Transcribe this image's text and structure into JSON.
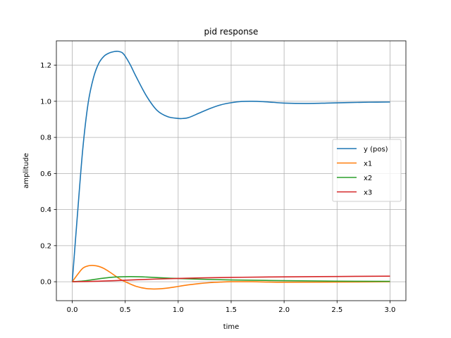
{
  "chart_data": {
    "type": "line",
    "title": "pid response",
    "xlabel": "time",
    "ylabel": "amplitude",
    "xlim": [
      -0.15,
      3.15
    ],
    "ylim": [
      -0.105,
      1.335
    ],
    "xticks": [
      0.0,
      0.5,
      1.0,
      1.5,
      2.0,
      2.5,
      3.0
    ],
    "xtick_labels": [
      "0.0",
      "0.5",
      "1.0",
      "1.5",
      "2.0",
      "2.5",
      "3.0"
    ],
    "yticks": [
      0.0,
      0.2,
      0.4,
      0.6,
      0.8,
      1.0,
      1.2
    ],
    "ytick_labels": [
      "0.0",
      "0.2",
      "0.4",
      "0.6",
      "0.8",
      "1.0",
      "1.2"
    ],
    "grid": true,
    "legend_position": "center-right",
    "series": [
      {
        "name": "y (pos)",
        "color": "#1f77b4",
        "x": [
          0,
          0.05,
          0.1,
          0.15,
          0.2,
          0.25,
          0.3,
          0.35,
          0.4,
          0.43,
          0.47,
          0.5,
          0.55,
          0.6,
          0.7,
          0.8,
          0.9,
          1.0,
          1.05,
          1.1,
          1.2,
          1.3,
          1.4,
          1.5,
          1.6,
          1.7,
          1.8,
          1.9,
          2.0,
          2.2,
          2.4,
          2.6,
          2.8,
          3.0
        ],
        "y": [
          0,
          0.38,
          0.74,
          0.99,
          1.13,
          1.21,
          1.25,
          1.268,
          1.276,
          1.277,
          1.27,
          1.25,
          1.2,
          1.14,
          1.03,
          0.95,
          0.915,
          0.905,
          0.905,
          0.91,
          0.935,
          0.96,
          0.98,
          0.992,
          0.999,
          1.0,
          0.998,
          0.994,
          0.99,
          0.988,
          0.99,
          0.993,
          0.995,
          0.996
        ]
      },
      {
        "name": "x1",
        "color": "#ff7f0e",
        "x": [
          0,
          0.05,
          0.1,
          0.15,
          0.2,
          0.25,
          0.3,
          0.35,
          0.4,
          0.45,
          0.5,
          0.6,
          0.7,
          0.8,
          0.9,
          1.0,
          1.1,
          1.2,
          1.3,
          1.4,
          1.5,
          1.7,
          2.0,
          2.5,
          3.0
        ],
        "y": [
          0,
          0.04,
          0.075,
          0.088,
          0.09,
          0.085,
          0.073,
          0.055,
          0.035,
          0.015,
          0.0,
          -0.025,
          -0.038,
          -0.04,
          -0.035,
          -0.026,
          -0.017,
          -0.01,
          -0.005,
          -0.002,
          0.0,
          0.0,
          -0.003,
          -0.002,
          0.0
        ]
      },
      {
        "name": "x2",
        "color": "#2ca02c",
        "x": [
          0,
          0.1,
          0.2,
          0.3,
          0.4,
          0.5,
          0.6,
          0.7,
          0.8,
          0.9,
          1.0,
          1.2,
          1.5,
          2.0,
          2.5,
          3.0
        ],
        "y": [
          0,
          0.004,
          0.012,
          0.02,
          0.026,
          0.028,
          0.028,
          0.026,
          0.023,
          0.02,
          0.018,
          0.014,
          0.01,
          0.006,
          0.003,
          0.002
        ]
      },
      {
        "name": "x3",
        "color": "#d62728",
        "x": [
          0,
          0.2,
          0.4,
          0.6,
          0.8,
          1.0,
          1.2,
          1.5,
          1.8,
          2.0,
          2.5,
          3.0
        ],
        "y": [
          0,
          0.002,
          0.006,
          0.011,
          0.015,
          0.018,
          0.021,
          0.024,
          0.026,
          0.027,
          0.029,
          0.031
        ]
      }
    ]
  }
}
